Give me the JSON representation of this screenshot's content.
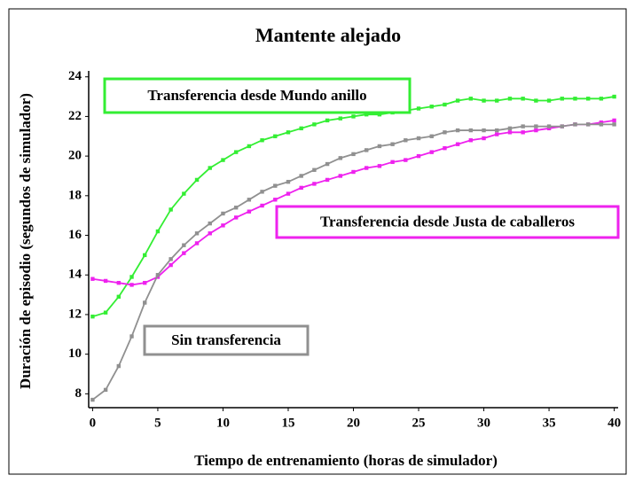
{
  "chart_data": {
    "type": "line",
    "title": "Mantente alejado",
    "xlabel": "Tiempo de entrenamiento (horas de simulador)",
    "ylabel": "Duración de episodio (segundos de simulador)",
    "x": [
      0,
      1,
      2,
      3,
      4,
      5,
      6,
      7,
      8,
      9,
      10,
      11,
      12,
      13,
      14,
      15,
      16,
      17,
      18,
      19,
      20,
      21,
      22,
      23,
      24,
      25,
      26,
      27,
      28,
      29,
      30,
      31,
      32,
      33,
      34,
      35,
      36,
      37,
      38,
      39,
      40
    ],
    "series": [
      {
        "name": "Transferencia desde Mundo anillo",
        "color": "#33ee33",
        "values": [
          11.9,
          12.1,
          12.9,
          13.9,
          15.0,
          16.2,
          17.3,
          18.1,
          18.8,
          19.4,
          19.8,
          20.2,
          20.5,
          20.8,
          21.0,
          21.2,
          21.4,
          21.6,
          21.8,
          21.9,
          22.0,
          22.1,
          22.1,
          22.2,
          22.3,
          22.4,
          22.5,
          22.6,
          22.8,
          22.9,
          22.8,
          22.8,
          22.9,
          22.9,
          22.8,
          22.8,
          22.9,
          22.9,
          22.9,
          22.9,
          23.0
        ]
      },
      {
        "name": "Transferencia desde Justa de caballeros",
        "color": "#ee22ee",
        "values": [
          13.8,
          13.7,
          13.6,
          13.5,
          13.6,
          13.9,
          14.5,
          15.1,
          15.6,
          16.1,
          16.5,
          16.9,
          17.2,
          17.5,
          17.8,
          18.1,
          18.4,
          18.6,
          18.8,
          19.0,
          19.2,
          19.4,
          19.5,
          19.7,
          19.8,
          20.0,
          20.2,
          20.4,
          20.6,
          20.8,
          20.9,
          21.1,
          21.2,
          21.2,
          21.3,
          21.4,
          21.5,
          21.6,
          21.6,
          21.7,
          21.8
        ]
      },
      {
        "name": "Sin  transferencia",
        "color": "#909090",
        "values": [
          7.7,
          8.2,
          9.4,
          10.9,
          12.6,
          14.0,
          14.8,
          15.5,
          16.1,
          16.6,
          17.1,
          17.4,
          17.8,
          18.2,
          18.5,
          18.7,
          19.0,
          19.3,
          19.6,
          19.9,
          20.1,
          20.3,
          20.5,
          20.6,
          20.8,
          20.9,
          21.0,
          21.2,
          21.3,
          21.3,
          21.3,
          21.3,
          21.4,
          21.5,
          21.5,
          21.5,
          21.5,
          21.6,
          21.6,
          21.6,
          21.6
        ]
      }
    ],
    "xlim": [
      -0.3,
      40.3
    ],
    "xticks": [
      0,
      5,
      10,
      15,
      20,
      25,
      30,
      35,
      40
    ],
    "ylim": [
      7.3,
      24.3
    ],
    "yticks": [
      8,
      10,
      12,
      14,
      16,
      18,
      20,
      22,
      24
    ]
  }
}
